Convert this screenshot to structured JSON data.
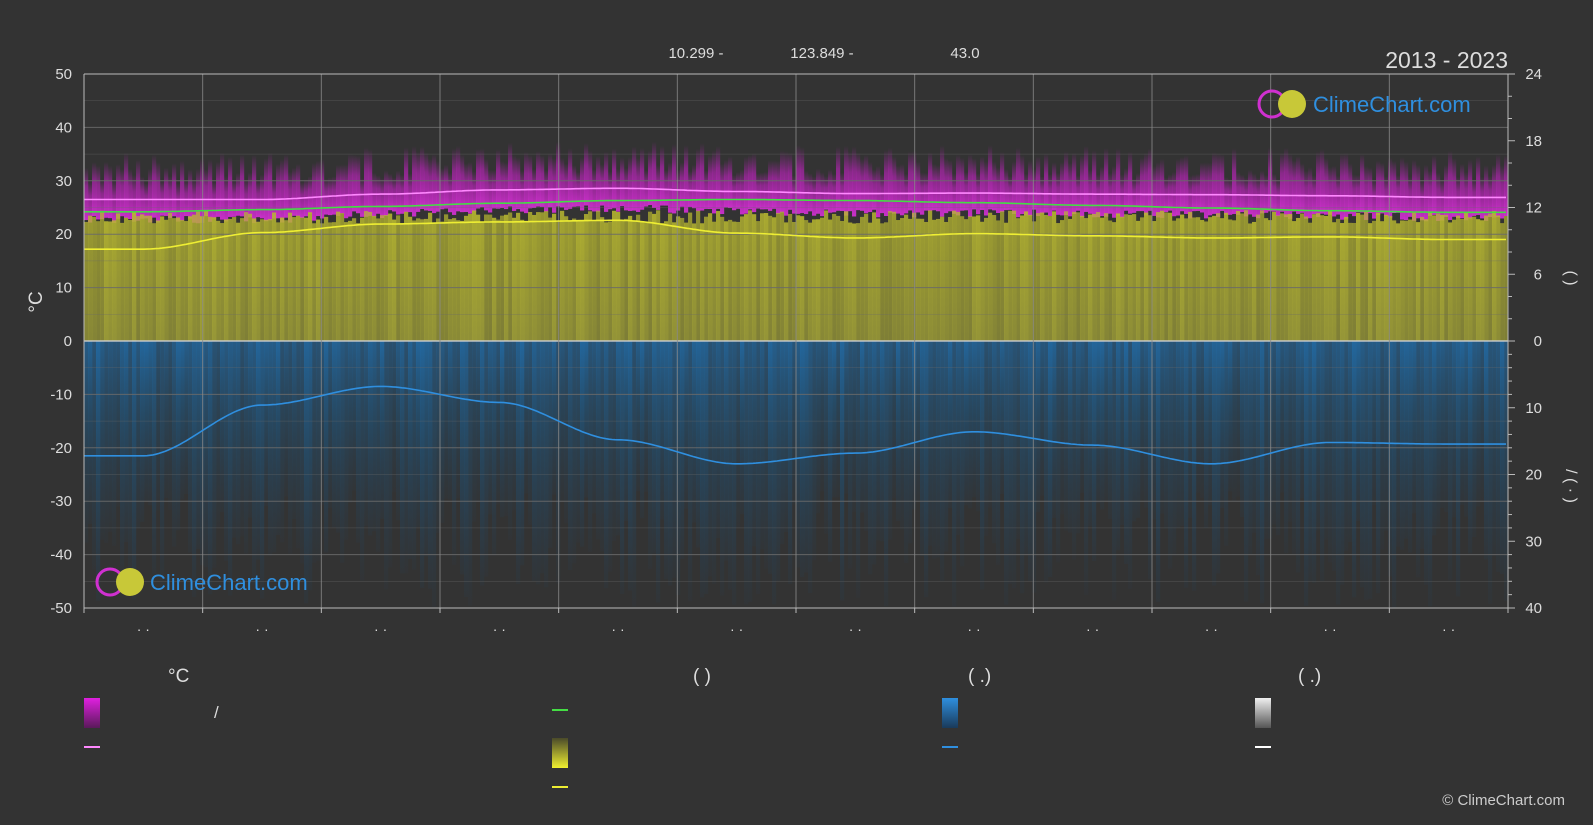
{
  "header": {
    "lat": "10.299 -",
    "lon": "123.849 -",
    "elev": "43.0",
    "period": "2013 - 2023"
  },
  "brand": {
    "logo_text": "ClimeChart.com",
    "copyright": "© ClimeChart.com"
  },
  "chart_data": {
    "type": "line",
    "categories": [
      "· ·",
      "· ·",
      "· ·",
      "· ·",
      "· ·",
      "· ·",
      "· ·",
      "· ·",
      "· ·",
      "· ·",
      "· ·",
      "· ·"
    ],
    "ylabel_left": "°C",
    "ylim_left": [
      -50,
      50
    ],
    "yticks_left": [
      50,
      40,
      30,
      20,
      10,
      0,
      -10,
      -20,
      -30,
      -40,
      -50
    ],
    "ylim_right_top": [
      0,
      24
    ],
    "yticks_right_top": [
      24,
      18,
      12,
      6,
      0
    ],
    "ylabel_right_top": "(    )",
    "ylim_right_bottom": [
      0,
      40
    ],
    "yticks_right_bottom": [
      10,
      20,
      30,
      40
    ],
    "ylabel_right_bottom": "/    (  ·  )",
    "grid": true,
    "series": [
      {
        "key": "max_temp_line",
        "color": "#ff88ff",
        "values": [
          26.5,
          26.5,
          27.5,
          28.3,
          28.6,
          28.0,
          27.6,
          27.7,
          27.5,
          27.4,
          27.2,
          26.9
        ]
      },
      {
        "key": "daylight_line",
        "color": "#44dd44",
        "values": [
          24.2,
          24.6,
          25.2,
          25.8,
          26.3,
          26.5,
          26.3,
          25.9,
          25.4,
          24.9,
          24.4,
          24.1
        ]
      },
      {
        "key": "sunshine_line",
        "color": "#eeee33",
        "values": [
          17.2,
          20.3,
          21.9,
          22.3,
          22.6,
          20.2,
          19.3,
          20.1,
          19.7,
          19.3,
          19.5,
          19.0
        ]
      },
      {
        "key": "precip_line",
        "color": "#2f8fdf",
        "values": [
          -21.5,
          -12.0,
          -8.5,
          -11.5,
          -18.5,
          -23.0,
          -21.0,
          -17.0,
          -19.5,
          -23.0,
          -19.0,
          -19.3
        ]
      }
    ]
  },
  "legend": {
    "col1_head": "°C",
    "col2_head": "(          )",
    "col3_head": "(    .)",
    "col4_head": "(    .)",
    "slash": "/",
    "colors": {
      "temp_range": "#e020e0",
      "temp_mean": "#ff88ff",
      "daylight": "#44dd44",
      "sunshine_box": "#d8d836",
      "sunshine_line": "#eeee33",
      "precip_box": "#2f8fdf",
      "precip_line": "#2f8fdf",
      "snow_box": "#dddddd",
      "snow_line": "#ffffff"
    }
  }
}
